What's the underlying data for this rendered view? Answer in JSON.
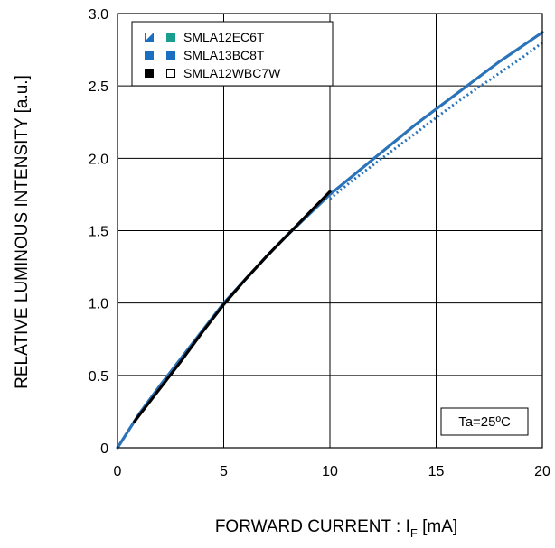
{
  "chart_data": {
    "type": "line",
    "title": "",
    "xlabel": "FORWARD CURRENT : I",
    "xlabel_sub": "F",
    "xlabel_unit": " [mA]",
    "ylabel": "RELATIVE LUMINOUS INTENSITY [a.u.]",
    "xlim": [
      0,
      20
    ],
    "ylim": [
      0,
      3.0
    ],
    "x_ticks": [
      0,
      5,
      10,
      15,
      20
    ],
    "x_tick_labels": [
      "0",
      "5",
      "10",
      "15",
      "20"
    ],
    "y_ticks": [
      0,
      0.5,
      1.0,
      1.5,
      2.0,
      2.5,
      3.0
    ],
    "y_tick_labels": [
      "0",
      "0.5",
      "1.0",
      "1.5",
      "2.0",
      "2.5",
      "3.0"
    ],
    "grid": true,
    "legend_position": "top-left",
    "legend": [
      {
        "label": "SMLA12EC6T",
        "markers": [
          "half-filled-square",
          "filled-square"
        ],
        "colors": [
          "#1a6fc0",
          "#1a9e8f"
        ]
      },
      {
        "label": "SMLA13BC8T",
        "markers": [
          "filled-square",
          "filled-square"
        ],
        "colors": [
          "#1a6fc0",
          "#1a6fc0"
        ]
      },
      {
        "label": "SMLA12WBC7W",
        "markers": [
          "filled-square",
          "open-square"
        ],
        "colors": [
          "#000000",
          "#000000"
        ]
      }
    ],
    "annotation": "Ta=25ºC",
    "annotation_position": "bottom-right",
    "series": [
      {
        "style": "solid",
        "color": "#2a73b8",
        "x": [
          0,
          1,
          2,
          3,
          4,
          5,
          6,
          7,
          8,
          9,
          10,
          11,
          12,
          13,
          14,
          15,
          16,
          17,
          18,
          19,
          20
        ],
        "y": [
          0,
          0.23,
          0.43,
          0.62,
          0.81,
          1.0,
          1.16,
          1.32,
          1.47,
          1.61,
          1.75,
          1.87,
          1.99,
          2.11,
          2.23,
          2.34,
          2.45,
          2.56,
          2.67,
          2.77,
          2.87
        ]
      },
      {
        "style": "dotted",
        "color": "#2a73b8",
        "x": [
          10,
          11,
          12,
          13,
          14,
          15,
          16,
          17,
          18,
          19,
          20
        ],
        "y": [
          1.72,
          1.84,
          1.95,
          2.06,
          2.17,
          2.28,
          2.39,
          2.49,
          2.59,
          2.69,
          2.8
        ]
      },
      {
        "style": "solid",
        "color": "#000000",
        "x": [
          0.8,
          1,
          2,
          3,
          4,
          5,
          6,
          7,
          8,
          9,
          10
        ],
        "y": [
          0.18,
          0.22,
          0.41,
          0.6,
          0.8,
          0.99,
          1.16,
          1.32,
          1.47,
          1.62,
          1.77
        ]
      }
    ]
  }
}
